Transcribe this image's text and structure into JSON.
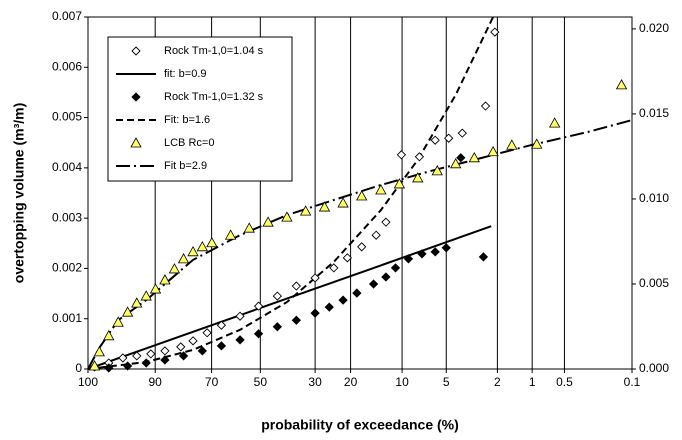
{
  "chart_data": {
    "type": "scatter",
    "x_label": "probability of exceedance (%)",
    "y_label": "overtopping volume (m³/m)",
    "x_scale": "exceedance",
    "xlim": [
      100,
      0.1
    ],
    "xticks": [
      100,
      90,
      70,
      50,
      30,
      20,
      10,
      5,
      2,
      1,
      0.5,
      0.1
    ],
    "ylim": [
      0,
      0.007
    ],
    "yticks": [
      0,
      0.001,
      0.002,
      0.003,
      0.004,
      0.005,
      0.006,
      0.007
    ],
    "y2lim": [
      0,
      0.0207
    ],
    "y2ticks": [
      {
        "value": 0,
        "label": "0.000"
      },
      {
        "value": 0.005,
        "label": "0.005"
      },
      {
        "value": 0.01,
        "label": "0.010"
      },
      {
        "value": 0.015,
        "label": "0.015"
      },
      {
        "value": 0.02,
        "label": "0.020"
      }
    ],
    "grid": "x",
    "legend": "top-left",
    "series": [
      {
        "name": "Rock Tm-1,0=1.04 s",
        "color": "#000000",
        "marker": "open-diamond",
        "x": [
          99.9,
          99.0,
          97.2,
          94.6,
          91.2,
          87.1,
          81.8,
          77.3,
          71.8,
          66.0,
          58.3,
          50.7,
          43.3,
          36.3,
          30.0,
          24.4,
          20.8,
          17.4,
          14.4,
          12.6,
          10.1,
          7.7,
          6.0,
          4.8,
          3.8,
          2.5,
          2.1
        ],
        "values": [
          4e-05,
          0.00012,
          0.00022,
          0.00026,
          0.0003,
          0.00036,
          0.00044,
          0.00056,
          0.00072,
          0.00087,
          0.00105,
          0.00125,
          0.00145,
          0.00165,
          0.00181,
          0.00201,
          0.00221,
          0.00243,
          0.00266,
          0.00292,
          0.00426,
          0.00422,
          0.00455,
          0.00459,
          0.00469,
          0.00523,
          0.0067
        ]
      },
      {
        "name": "fit: b=0.9",
        "color": "#000000",
        "line": "solid",
        "x": [
          100,
          77.3,
          39.7,
          13.5,
          2.25
        ],
        "values": [
          0,
          0.00074,
          0.0014,
          0.00206,
          0.00284
        ]
      },
      {
        "name": "Rock Tm-1,0=1.32 s",
        "color": "#000000",
        "marker": "diamond",
        "x": [
          99.0,
          96.4,
          92.4,
          87.1,
          80.8,
          73.7,
          66.0,
          58.3,
          50.7,
          43.3,
          36.3,
          30.0,
          25.7,
          21.9,
          18.5,
          14.9,
          12.6,
          11.0,
          9.1,
          7.4,
          6.0,
          5.0,
          3.9,
          2.6
        ],
        "values": [
          2e-05,
          6e-05,
          0.00012,
          0.00018,
          0.00026,
          0.00036,
          0.00046,
          0.00058,
          0.0007,
          0.00084,
          0.00097,
          0.00111,
          0.00123,
          0.00137,
          0.00151,
          0.00169,
          0.00183,
          0.00201,
          0.00219,
          0.00229,
          0.00233,
          0.00241,
          0.0042,
          0.00223
        ]
      },
      {
        "name": "Fit: b=1.6",
        "color": "#000000",
        "line": "dashed",
        "x": [
          100,
          92.4,
          77.3,
          58.3,
          39.7,
          24.4,
          13.5,
          7.9,
          4.26,
          2.17
        ],
        "values": [
          0,
          0.00014,
          0.00038,
          0.00078,
          0.00133,
          0.00213,
          0.00316,
          0.00416,
          0.00545,
          0.007
        ]
      },
      {
        "name": "LCB Rc=0",
        "color": "#ffff66",
        "marker": "triangle",
        "x": [
          99.9,
          99.7,
          99.0,
          97.9,
          96.4,
          94.6,
          92.4,
          89.9,
          87.1,
          84.0,
          80.8,
          77.3,
          73.7,
          69.9,
          62.2,
          54.5,
          46.9,
          39.7,
          33.1,
          27.1,
          21.9,
          17.4,
          13.5,
          10.4,
          7.9,
          5.8,
          4.26,
          3.07,
          2.17,
          1.51,
          0.91,
          0.62,
          0.13
        ],
        "values": [
          6e-05,
          0.00034,
          0.00066,
          0.00093,
          0.00113,
          0.00131,
          0.00145,
          0.00159,
          0.00177,
          0.00199,
          0.00219,
          0.00233,
          0.00243,
          0.00251,
          0.00266,
          0.0028,
          0.00292,
          0.00302,
          0.00314,
          0.00322,
          0.0033,
          0.00344,
          0.00356,
          0.00368,
          0.0038,
          0.00394,
          0.00408,
          0.0042,
          0.00432,
          0.00445,
          0.00447,
          0.00489,
          0.00565
        ]
      },
      {
        "name": "Fit b=2.9",
        "color": "#000000",
        "line": "dashdot",
        "x": [
          100,
          99.7,
          97.9,
          92.4,
          77.3,
          58.3,
          39.7,
          24.4,
          13.5,
          6.8,
          3.07,
          1.03,
          0.3,
          0.1
        ],
        "values": [
          0,
          0.00042,
          0.00097,
          0.00137,
          0.00217,
          0.00266,
          0.00306,
          0.00336,
          0.00366,
          0.00392,
          0.00416,
          0.00445,
          0.00471,
          0.00495
        ]
      }
    ]
  }
}
